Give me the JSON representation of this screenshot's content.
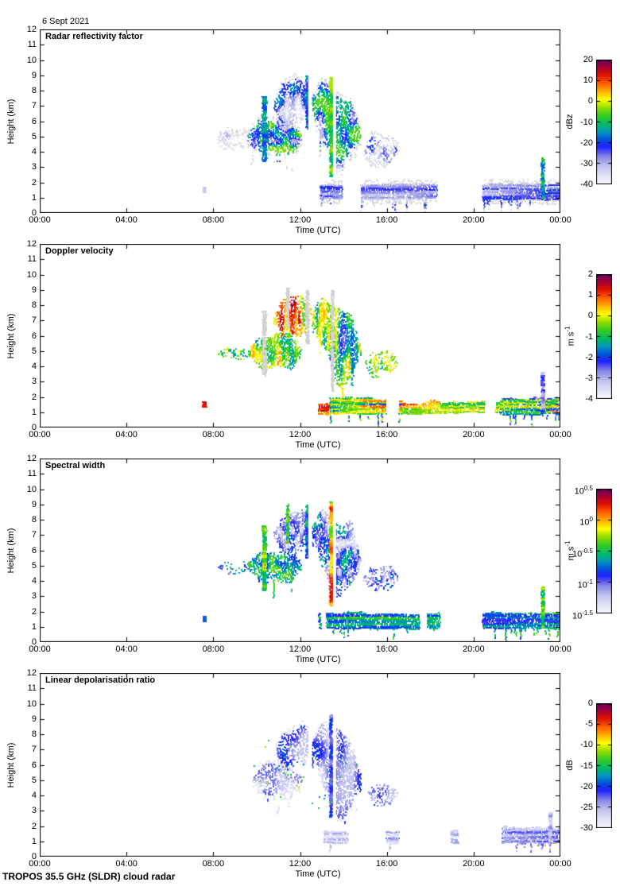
{
  "date_title": "6 Sept 2021",
  "footer": "TROPOS 35.5 GHz (SLDR) cloud radar",
  "time_axis": {
    "label": "Time (UTC)",
    "tick_hours": [
      0,
      4,
      8,
      12,
      16,
      20,
      24
    ],
    "tick_labels": [
      "00:00",
      "04:00",
      "08:00",
      "12:00",
      "16:00",
      "20:00",
      "00:00"
    ]
  },
  "height_axis": {
    "label": "Height (km)",
    "min_km": 0,
    "max_km": 12,
    "tick_labels": [
      "0",
      "1",
      "2",
      "3",
      "4",
      "5",
      "6",
      "7",
      "8",
      "9",
      "10",
      "11",
      "12"
    ]
  },
  "colormap_stops": [
    [
      0.0,
      "#f7f7fd"
    ],
    [
      0.06,
      "#e4e4f7"
    ],
    [
      0.14,
      "#c3c3ef"
    ],
    [
      0.22,
      "#8888e6"
    ],
    [
      0.3,
      "#2020ff"
    ],
    [
      0.36,
      "#0055dd"
    ],
    [
      0.42,
      "#0099bb"
    ],
    [
      0.48,
      "#00bb66"
    ],
    [
      0.55,
      "#33cc22"
    ],
    [
      0.62,
      "#99dd00"
    ],
    [
      0.68,
      "#ffff00"
    ],
    [
      0.75,
      "#ffaa00"
    ],
    [
      0.82,
      "#ff5500"
    ],
    [
      0.88,
      "#dd1100"
    ],
    [
      0.94,
      "#aa0033"
    ],
    [
      1.0,
      "#660066"
    ]
  ],
  "fringe_color_default": "#d9d9d9",
  "chart_data": [
    {
      "type": "heatmap",
      "title": "Radar reflectivity factor",
      "x_range_hours": [
        0,
        24
      ],
      "y_range_km": [
        0,
        12
      ],
      "colorbar": {
        "unit": {
          "text": "dBz",
          "sup": ""
        },
        "min": -40,
        "max": 20,
        "ticks": [
          {
            "v": 20,
            "label": "20"
          },
          {
            "v": 10,
            "label": "10"
          },
          {
            "v": 0,
            "label": "0"
          },
          {
            "v": -10,
            "label": "-10"
          },
          {
            "v": -20,
            "label": "-20"
          },
          {
            "v": -30,
            "label": "-30"
          },
          {
            "v": -40,
            "label": "-40"
          }
        ]
      },
      "features": [
        {
          "shape": "blob",
          "t0": 8.2,
          "t1": 9.7,
          "h0": 4.4,
          "h1": 5.3,
          "v0": -40,
          "v1": -30,
          "density": 0.4,
          "fringe": true,
          "cfx": 4,
          "cfy": 3
        },
        {
          "shape": "blob",
          "t0": 9.6,
          "t1": 12.0,
          "h0": 3.6,
          "h1": 6.3,
          "v0": -34,
          "v1": -4,
          "density": 0.85,
          "fringe": true,
          "cfx": 7,
          "cfy": 5,
          "profile": "core",
          "tails": 0.12
        },
        {
          "shape": "blob",
          "t0": 10.8,
          "t1": 12.45,
          "h0": 5.8,
          "h1": 8.8,
          "v0": -38,
          "v1": -16,
          "density": 0.8,
          "fringe": true,
          "cfx": 6,
          "cfy": 4,
          "tilt": -0.2
        },
        {
          "shape": "blob",
          "t0": 12.55,
          "t1": 14.75,
          "h0": 3.9,
          "h1": 8.4,
          "v0": -34,
          "v1": -6,
          "density": 0.85,
          "fringe": true,
          "cfx": 6,
          "cfy": 4,
          "profile": "core",
          "tilt": 0.45,
          "dipU": 0.55,
          "dipAmt": 1.7,
          "dipW": 0.13,
          "tails": 0.1
        },
        {
          "shape": "spike",
          "t0": 10.25,
          "t1": 10.4,
          "h0": 3.4,
          "h1": 7.6,
          "v0": -22,
          "v1": -12
        },
        {
          "shape": "spike",
          "t0": 12.25,
          "t1": 12.38,
          "h0": 5.5,
          "h1": 9.0,
          "v0": -24,
          "v1": -14
        },
        {
          "shape": "spike",
          "t0": 13.35,
          "t1": 13.5,
          "h0": 2.4,
          "h1": 8.9,
          "v0": -12,
          "v1": -2
        },
        {
          "shape": "blob",
          "t0": 14.95,
          "t1": 16.45,
          "h0": 3.2,
          "h1": 5.1,
          "v0": -38,
          "v1": -20,
          "density": 0.55,
          "fringe": true,
          "cfx": 5,
          "cfy": 4
        },
        {
          "shape": "dot",
          "t0": 7.5,
          "t1": 7.65,
          "h0": 1.35,
          "h1": 1.75,
          "v0": -34,
          "v1": -28
        },
        {
          "shape": "layer",
          "t0": 12.9,
          "t1": 18.45,
          "h0": 0.95,
          "h1": 1.85,
          "v0": -34,
          "v1": -20,
          "cover": 0.8,
          "drip": 0.1,
          "fringe": true
        },
        {
          "shape": "layer",
          "t0": 18.45,
          "t1": 20.4,
          "h0": 1.0,
          "h1": 1.6,
          "v0": -40,
          "v1": -35,
          "cover": 0.5,
          "fringe": true
        },
        {
          "shape": "layer",
          "t0": 20.4,
          "t1": 24.0,
          "h0": 0.9,
          "h1": 1.9,
          "v0": -34,
          "v1": -20,
          "cover": 0.85,
          "drip": 0.12,
          "fringe": true
        },
        {
          "shape": "spike",
          "t0": 23.1,
          "t1": 23.25,
          "h0": 1.0,
          "h1": 3.7,
          "v0": -18,
          "v1": -8
        },
        {
          "shape": "gap",
          "t0": 12.38,
          "t1": 12.55,
          "h0": 4.5,
          "h1": 9.3
        },
        {
          "shape": "gap",
          "t0": 13.52,
          "t1": 13.66,
          "h0": 2.2,
          "h1": 9.5
        }
      ]
    },
    {
      "type": "heatmap",
      "title": "Doppler velocity",
      "x_range_hours": [
        0,
        24
      ],
      "y_range_km": [
        0,
        12
      ],
      "colorbar": {
        "unit": {
          "text": "m s",
          "sup": "-1"
        },
        "min": -4,
        "max": 2,
        "ticks": [
          {
            "v": 2,
            "label": "2"
          },
          {
            "v": 1,
            "label": "1"
          },
          {
            "v": 0,
            "label": "0"
          },
          {
            "v": -1,
            "label": "-1"
          },
          {
            "v": -2,
            "label": "-2"
          },
          {
            "v": -3,
            "label": "-3"
          },
          {
            "v": -4,
            "label": "-4"
          }
        ]
      },
      "features": [
        {
          "shape": "blob",
          "t0": 8.2,
          "t1": 9.7,
          "h0": 4.4,
          "h1": 5.3,
          "v0": -1.6,
          "v1": 0.2,
          "density": 0.4,
          "cfx": 8,
          "cfy": 3
        },
        {
          "shape": "blob",
          "t0": 9.6,
          "t1": 12.0,
          "h0": 3.6,
          "h1": 6.3,
          "v0": -1.6,
          "v1": 0.6,
          "density": 0.85,
          "cfx": 12,
          "cfy": 2.5,
          "tails": 0.12
        },
        {
          "shape": "blob",
          "t0": 10.8,
          "t1": 12.45,
          "h0": 5.8,
          "h1": 8.8,
          "v0": -0.6,
          "v1": 1.6,
          "density": 0.8,
          "cfx": 10,
          "cfy": 2.5,
          "tilt": -0.2
        },
        {
          "shape": "blob",
          "t0": 12.55,
          "t1": 14.75,
          "h0": 3.9,
          "h1": 8.4,
          "v0": -2.6,
          "v1": 0.4,
          "density": 0.85,
          "cfx": 12,
          "cfy": 2.5,
          "tilt": 0.45,
          "dipU": 0.55,
          "dipAmt": 1.7,
          "dipW": 0.13,
          "tails": 0.1
        },
        {
          "shape": "spike",
          "t0": 10.25,
          "t1": 10.4,
          "h0": 3.4,
          "h1": 7.6,
          "color": "#d2d2d2"
        },
        {
          "shape": "spike",
          "t0": 11.35,
          "t1": 11.45,
          "h0": 6.5,
          "h1": 9.2,
          "color": "#d2d2d2"
        },
        {
          "shape": "spike",
          "t0": 12.25,
          "t1": 12.38,
          "h0": 5.5,
          "h1": 9.0,
          "color": "#d2d2d2"
        },
        {
          "shape": "spike",
          "t0": 13.42,
          "t1": 13.52,
          "h0": 2.4,
          "h1": 9.0,
          "color": "#d2d2d2"
        },
        {
          "shape": "blob",
          "t0": 14.95,
          "t1": 16.45,
          "h0": 3.2,
          "h1": 5.1,
          "v0": -1.4,
          "v1": 0.3,
          "density": 0.55,
          "cfx": 8,
          "cfy": 3
        },
        {
          "shape": "dot",
          "t0": 7.5,
          "t1": 7.65,
          "h0": 1.35,
          "h1": 1.75,
          "v0": 1.0,
          "v1": 1.8
        },
        {
          "shape": "layer",
          "t0": 12.85,
          "t1": 13.35,
          "h0": 0.9,
          "h1": 1.6,
          "v0": 0.3,
          "v1": 1.6,
          "cover": 0.9
        },
        {
          "shape": "layer",
          "t0": 13.35,
          "t1": 16.7,
          "h0": 0.9,
          "h1": 1.9,
          "v0": -2.4,
          "v1": 0.9,
          "cover": 0.75,
          "drip": 0.1
        },
        {
          "shape": "layer",
          "t0": 16.7,
          "t1": 18.45,
          "h0": 0.9,
          "h1": 1.7,
          "v0": -0.8,
          "v1": 1.7,
          "cover": 0.9
        },
        {
          "shape": "layer",
          "t0": 18.45,
          "t1": 21.2,
          "h0": 1.0,
          "h1": 1.7,
          "v0": -1.2,
          "v1": 0.6,
          "cover": 0.55
        },
        {
          "shape": "layer",
          "t0": 21.2,
          "t1": 24.0,
          "h0": 0.9,
          "h1": 1.9,
          "v0": -2.8,
          "v1": 0.8,
          "cover": 0.85,
          "drip": 0.15
        },
        {
          "shape": "spike",
          "t0": 23.1,
          "t1": 23.25,
          "h0": 1.0,
          "h1": 3.7,
          "v0": -3.2,
          "v1": -1.8
        }
      ]
    },
    {
      "type": "heatmap",
      "title": "Spectral width",
      "x_range_hours": [
        0,
        24
      ],
      "y_range_km": [
        0,
        12
      ],
      "colorbar": {
        "unit": {
          "text": "m s",
          "sup": "-1"
        },
        "min": -1.5,
        "max": 0.5,
        "log10": true,
        "ticks": [
          {
            "v": 0.5,
            "base": "10",
            "exp": "0.5"
          },
          {
            "v": 0,
            "base": "10",
            "exp": "0"
          },
          {
            "v": -0.5,
            "base": "10",
            "exp": "-0.5"
          },
          {
            "v": -1,
            "base": "10",
            "exp": "-1"
          },
          {
            "v": -1.5,
            "base": "10",
            "exp": "-1.5"
          }
        ]
      },
      "features": [
        {
          "shape": "blob",
          "t0": 8.2,
          "t1": 9.7,
          "h0": 4.4,
          "h1": 5.3,
          "v0": -1.0,
          "v1": -0.5,
          "density": 0.35,
          "cfx": 6,
          "cfy": 4
        },
        {
          "shape": "blob",
          "t0": 9.6,
          "t1": 12.0,
          "h0": 3.6,
          "h1": 6.3,
          "v0": -0.95,
          "v1": -0.35,
          "density": 0.85,
          "cfx": 9,
          "cfy": 7,
          "profile": "core",
          "tails": 0.12
        },
        {
          "shape": "blob",
          "t0": 10.8,
          "t1": 12.45,
          "h0": 5.8,
          "h1": 8.8,
          "v0": -1.35,
          "v1": -0.75,
          "density": 0.8,
          "cfx": 8,
          "cfy": 6,
          "tilt": -0.2
        },
        {
          "shape": "blob",
          "t0": 12.55,
          "t1": 14.75,
          "h0": 3.9,
          "h1": 8.4,
          "v0": -1.35,
          "v1": -0.55,
          "density": 0.85,
          "cfx": 9,
          "cfy": 7,
          "tilt": 0.45,
          "dipU": 0.55,
          "dipAmt": 1.7,
          "dipW": 0.13,
          "tails": 0.1
        },
        {
          "shape": "spike",
          "t0": 10.25,
          "t1": 10.4,
          "h0": 3.4,
          "h1": 7.6,
          "v0": -0.6,
          "v1": -0.2
        },
        {
          "shape": "spike",
          "t0": 11.35,
          "t1": 11.45,
          "h0": 6.5,
          "h1": 9.0,
          "v0": -0.7,
          "v1": -0.3
        },
        {
          "shape": "spike",
          "t0": 12.25,
          "t1": 12.38,
          "h0": 5.5,
          "h1": 9.0,
          "v0": -0.9,
          "v1": -0.5
        },
        {
          "shape": "spike",
          "t0": 13.35,
          "t1": 13.5,
          "h0": 2.4,
          "h1": 9.2,
          "v0": -0.35,
          "v1": 0.25
        },
        {
          "shape": "blob",
          "t0": 14.95,
          "t1": 16.45,
          "h0": 3.2,
          "h1": 5.1,
          "v0": -1.25,
          "v1": -0.7,
          "density": 0.55,
          "cfx": 7,
          "cfy": 5
        },
        {
          "shape": "dot",
          "t0": 7.5,
          "t1": 7.65,
          "h0": 1.35,
          "h1": 1.75,
          "v0": -0.95,
          "v1": -0.75
        },
        {
          "shape": "layer",
          "t0": 12.85,
          "t1": 18.45,
          "h0": 0.9,
          "h1": 1.9,
          "v0": -0.9,
          "v1": -0.35,
          "cover": 0.8,
          "drip": 0.12
        },
        {
          "shape": "layer",
          "t0": 18.45,
          "t1": 20.4,
          "h0": 1.0,
          "h1": 1.6,
          "v0": -1.1,
          "v1": -0.6,
          "cover": 0.5
        },
        {
          "shape": "layer",
          "t0": 20.4,
          "t1": 24.0,
          "h0": 0.9,
          "h1": 1.9,
          "v0": -0.95,
          "v1": -0.35,
          "cover": 0.85,
          "drip": 0.15
        },
        {
          "shape": "spike",
          "t0": 23.1,
          "t1": 23.25,
          "h0": 1.0,
          "h1": 3.7,
          "v0": -0.6,
          "v1": -0.2
        },
        {
          "shape": "gap",
          "t0": 12.38,
          "t1": 12.55,
          "h0": 4.5,
          "h1": 9.3
        },
        {
          "shape": "gap",
          "t0": 13.52,
          "t1": 13.66,
          "h0": 2.2,
          "h1": 9.5
        }
      ]
    },
    {
      "type": "heatmap",
      "title": "Linear depolarisation ratio",
      "x_range_hours": [
        0,
        24
      ],
      "y_range_km": [
        0,
        12
      ],
      "colorbar": {
        "unit": {
          "text": "dB",
          "sup": ""
        },
        "min": -30,
        "max": 0,
        "ticks": [
          {
            "v": 0,
            "label": "0"
          },
          {
            "v": -5,
            "label": "-5"
          },
          {
            "v": -10,
            "label": "-10"
          },
          {
            "v": -15,
            "label": "-15"
          },
          {
            "v": -20,
            "label": "-20"
          },
          {
            "v": -25,
            "label": "-25"
          },
          {
            "v": -30,
            "label": "-30"
          }
        ]
      },
      "features": [
        {
          "shape": "blob",
          "t0": 9.8,
          "t1": 12.0,
          "h0": 4.0,
          "h1": 6.1,
          "v0": -28,
          "v1": -22,
          "density": 0.6,
          "fringe": "#e0e0f2",
          "cfx": 5,
          "cfy": 3,
          "tails": 0.08
        },
        {
          "shape": "blob",
          "t0": 10.9,
          "t1": 12.45,
          "h0": 5.8,
          "h1": 8.7,
          "v0": -26,
          "v1": -19,
          "density": 0.65,
          "fringe": "#e0e0f2",
          "cfx": 5,
          "cfy": 3,
          "tilt": -0.2
        },
        {
          "shape": "blob",
          "t0": 12.55,
          "t1": 14.75,
          "h0": 3.9,
          "h1": 8.3,
          "v0": -27,
          "v1": -20,
          "density": 0.8,
          "fringe": "#e0e0f2",
          "cfx": 5,
          "cfy": 3,
          "tilt": 0.45,
          "dipU": 0.55,
          "dipAmt": 1.6,
          "dipW": 0.13,
          "tails": 0.08
        },
        {
          "shape": "spike",
          "t0": 13.35,
          "t1": 13.45,
          "h0": 2.6,
          "h1": 9.3,
          "v0": -24,
          "v1": -19
        },
        {
          "shape": "blob",
          "t0": 15.1,
          "t1": 16.45,
          "h0": 3.3,
          "h1": 4.9,
          "v0": -27,
          "v1": -21,
          "density": 0.5,
          "cfx": 5,
          "cfy": 3
        },
        {
          "shape": "blob",
          "t0": 9.8,
          "t1": 14.7,
          "h0": 3.2,
          "h1": 8.5,
          "v0": -18,
          "v1": -10,
          "density": 0.015,
          "cfx": 9,
          "cfy": 9
        },
        {
          "shape": "layer",
          "t0": 13.1,
          "t1": 19.3,
          "h0": 0.9,
          "h1": 1.7,
          "v0": -29,
          "v1": -23,
          "cover": 0.62,
          "drip": 0.1
        },
        {
          "shape": "layer",
          "t0": 21.3,
          "t1": 24.0,
          "h0": 0.9,
          "h1": 1.9,
          "v0": -28,
          "v1": -22,
          "cover": 0.85,
          "drip": 0.18
        },
        {
          "shape": "spike",
          "t0": 23.45,
          "t1": 23.6,
          "h0": 1.0,
          "h1": 2.9,
          "v0": -27,
          "v1": -23
        },
        {
          "shape": "blob",
          "t0": 23.2,
          "t1": 23.9,
          "h0": 0.6,
          "h1": 1.2,
          "v0": -16,
          "v1": -6,
          "density": 0.05,
          "cfx": 8,
          "cfy": 8
        },
        {
          "shape": "gap",
          "t0": 12.38,
          "t1": 12.55,
          "h0": 4.5,
          "h1": 9.3
        },
        {
          "shape": "gap",
          "t0": 13.52,
          "t1": 13.66,
          "h0": 2.2,
          "h1": 9.5
        }
      ]
    }
  ]
}
